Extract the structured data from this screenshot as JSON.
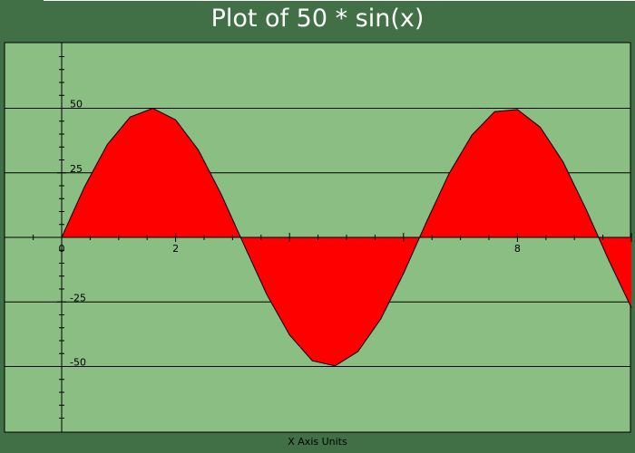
{
  "title": "Plot of 50 * sin(x)",
  "colors": {
    "frame": "#417046",
    "plot_background": "#8bbe83",
    "fill": "#ff0000",
    "line": "#000000",
    "title_text": "#ffffff"
  },
  "chart_data": {
    "type": "area",
    "title": "Plot of 50 * sin(x)",
    "xlabel": "X Axis Units",
    "ylabel": "",
    "function": "50 * sin(x)",
    "xlim": [
      -0.8,
      10.1
    ],
    "ylim": [
      -75,
      75
    ],
    "grid": true,
    "x_ticks": [
      0,
      2,
      8
    ],
    "y_ticks": [
      50,
      25,
      -25,
      -50
    ],
    "series": [
      {
        "values": [
          [
            0.0,
            0.0
          ],
          [
            0.4,
            19.5
          ],
          [
            0.8,
            35.9
          ],
          [
            1.2,
            46.6
          ],
          [
            1.6,
            50.0
          ],
          [
            2.0,
            45.5
          ],
          [
            2.4,
            33.8
          ],
          [
            2.8,
            16.7
          ],
          [
            3.2,
            -2.9
          ],
          [
            3.6,
            -22.1
          ],
          [
            4.0,
            -37.8
          ],
          [
            4.4,
            -47.8
          ],
          [
            4.8,
            -49.8
          ],
          [
            5.2,
            -44.2
          ],
          [
            5.6,
            -31.6
          ],
          [
            6.0,
            -14.0
          ],
          [
            6.4,
            5.8
          ],
          [
            6.8,
            24.7
          ],
          [
            7.2,
            39.6
          ],
          [
            7.6,
            48.7
          ],
          [
            8.0,
            49.5
          ],
          [
            8.4,
            42.7
          ],
          [
            8.8,
            29.3
          ],
          [
            9.2,
            11.1
          ],
          [
            9.6,
            -8.7
          ],
          [
            10.0,
            -27.2
          ]
        ]
      }
    ]
  }
}
